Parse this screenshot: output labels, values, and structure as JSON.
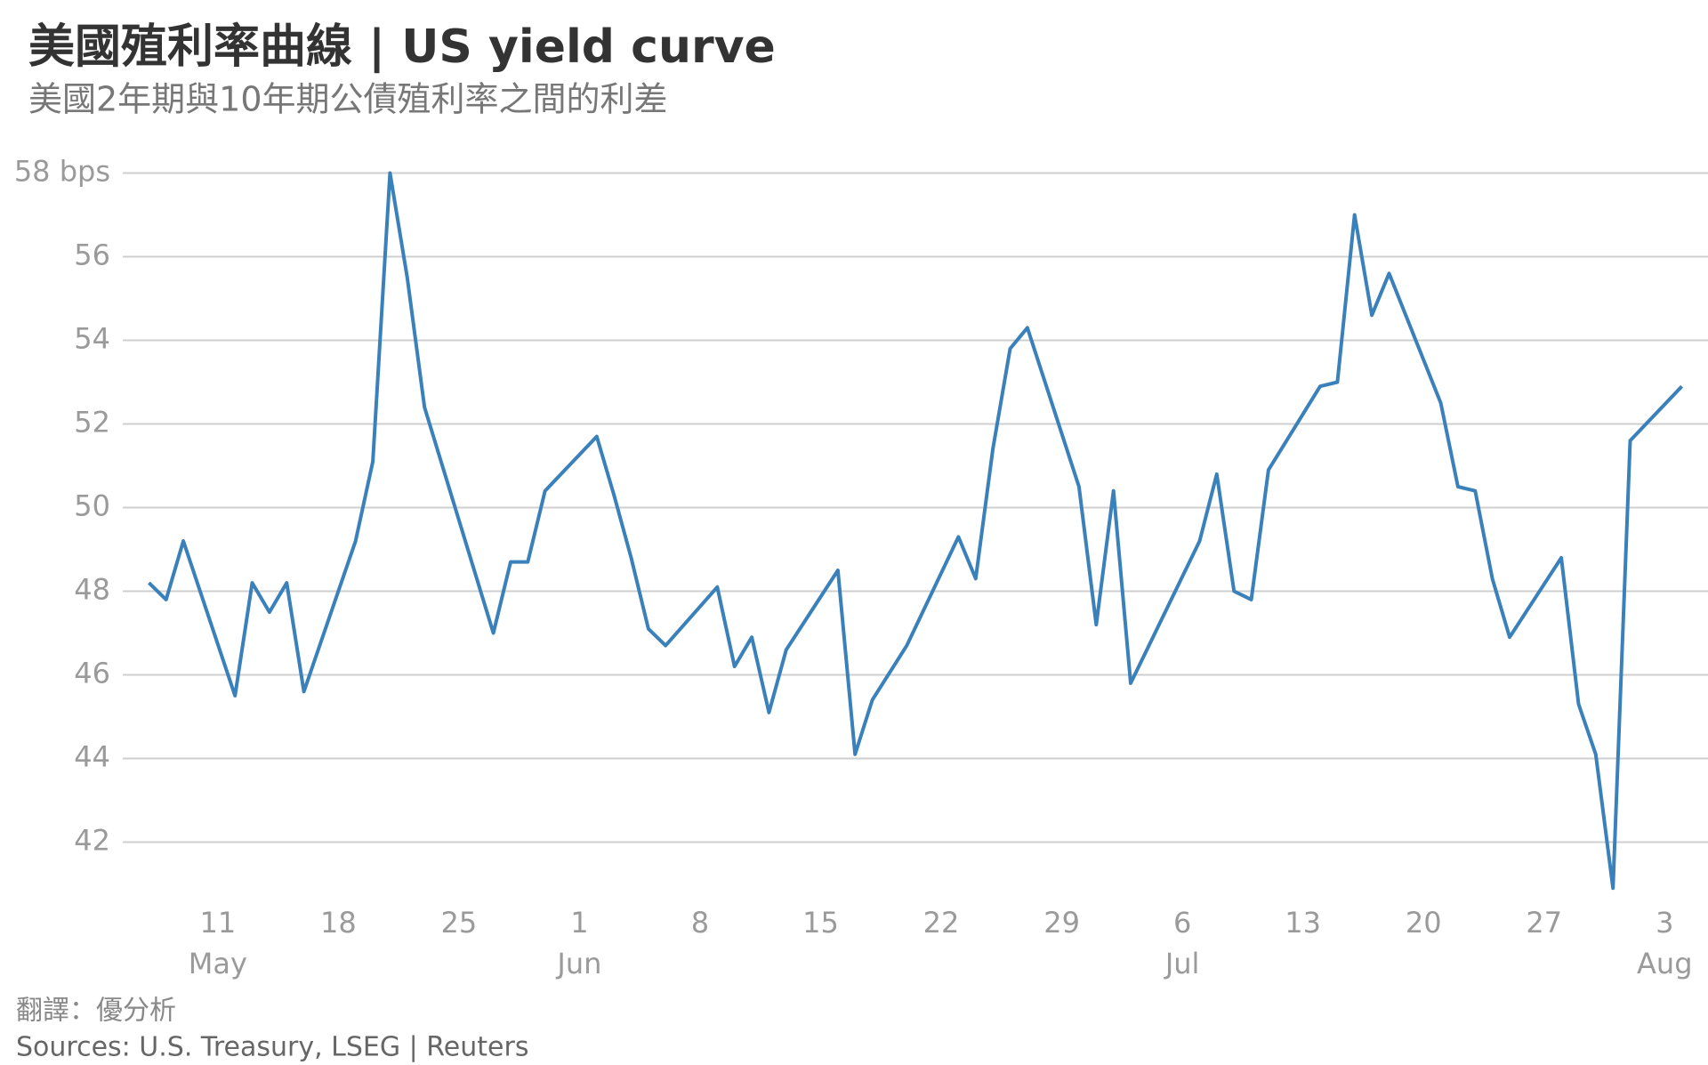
{
  "chart_data": {
    "type": "line",
    "title": "美國殖利率曲線 | US yield curve",
    "subtitle": "美國2年期與10年期公債殖利率之間的利差",
    "notes": [
      "翻譯：優分析",
      "Sources: U.S. Treasury, LSEG | Reuters"
    ],
    "x": [
      "05-07",
      "05-08",
      "05-09",
      "05-12",
      "05-13",
      "05-14",
      "05-15",
      "05-16",
      "05-19",
      "05-20",
      "05-21",
      "05-22",
      "05-23",
      "05-27",
      "05-28",
      "05-29",
      "05-30",
      "06-02",
      "06-03",
      "06-04",
      "06-05",
      "06-06",
      "06-09",
      "06-10",
      "06-11",
      "06-12",
      "06-13",
      "06-16",
      "06-17",
      "06-18",
      "06-20",
      "06-23",
      "06-24",
      "06-25",
      "06-26",
      "06-27",
      "06-30",
      "07-01",
      "07-02",
      "07-03",
      "07-07",
      "07-08",
      "07-09",
      "07-10",
      "07-11",
      "07-14",
      "07-15",
      "07-16",
      "07-17",
      "07-18",
      "07-21",
      "07-22",
      "07-23",
      "07-24",
      "07-25",
      "07-28",
      "07-29",
      "07-30",
      "07-31",
      "08-01",
      "08-04"
    ],
    "series": [
      {
        "color": "#3a80ba",
        "values": [
          48.2,
          47.8,
          49.2,
          45.5,
          48.2,
          47.5,
          48.2,
          45.6,
          49.2,
          51.1,
          58.0,
          55.5,
          52.4,
          47.0,
          48.7,
          48.7,
          50.4,
          51.7,
          50.3,
          48.8,
          47.1,
          46.7,
          48.1,
          46.2,
          46.9,
          45.1,
          46.6,
          48.5,
          44.1,
          45.4,
          46.7,
          49.3,
          48.3,
          51.4,
          53.8,
          54.3,
          50.5,
          47.2,
          50.4,
          45.8,
          49.2,
          50.8,
          48.0,
          47.8,
          50.9,
          52.9,
          53.0,
          57.0,
          54.6,
          55.6,
          52.5,
          50.5,
          50.4,
          48.3,
          46.9,
          48.8,
          45.3,
          44.1,
          40.9,
          51.6,
          52.9
        ]
      }
    ],
    "xlim": [
      "05-06",
      "08-05"
    ],
    "xticks": [
      {
        "value": "05-11",
        "label": "11"
      },
      {
        "value": "05-18",
        "label": "18"
      },
      {
        "value": "05-25",
        "label": "25"
      },
      {
        "value": "06-01",
        "label": "1"
      },
      {
        "value": "06-08",
        "label": "8"
      },
      {
        "value": "06-15",
        "label": "15"
      },
      {
        "value": "06-22",
        "label": "22"
      },
      {
        "value": "06-29",
        "label": "29"
      },
      {
        "value": "07-06",
        "label": "6"
      },
      {
        "value": "07-13",
        "label": "13"
      },
      {
        "value": "07-20",
        "label": "20"
      },
      {
        "value": "07-27",
        "label": "27"
      },
      {
        "value": "08-03",
        "label": "3"
      }
    ],
    "month_labels": [
      {
        "value": "05-11",
        "label": "May"
      },
      {
        "value": "06-01",
        "label": "Jun"
      },
      {
        "value": "07-06",
        "label": "Jul"
      },
      {
        "value": "08-03",
        "label": "Aug"
      }
    ],
    "ylim": [
      40.5,
      58.5
    ],
    "yticks": [
      42,
      44,
      46,
      48,
      50,
      52,
      54,
      56,
      {
        "value": 58,
        "label": "58 bps"
      }
    ],
    "grid": true
  }
}
